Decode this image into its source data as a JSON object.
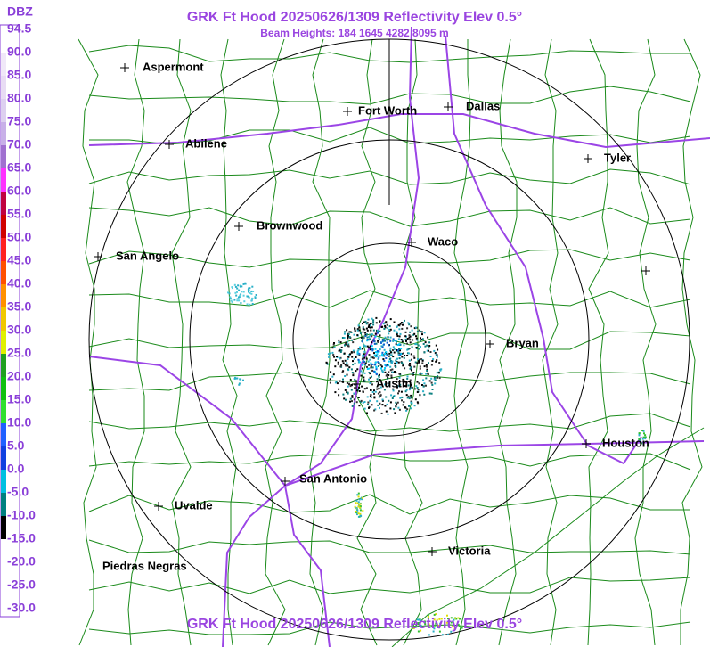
{
  "header": {
    "title": "GRK Ft Hood 20250626/1309 Reflectivity Elev 0.5°",
    "subtitle": "Beam Heights: 184 1645 4282 8095 m"
  },
  "footer": {
    "title": "GRK Ft Hood 20250626/1309 Reflectivity Elev 0.5°"
  },
  "legend": {
    "unit": "DBZ",
    "labels": [
      "94.5",
      "90.0",
      "85.0",
      "80.0",
      "75.0",
      "70.0",
      "65.0",
      "60.0",
      "55.0",
      "50.0",
      "45.0",
      "40.0",
      "35.0",
      "30.0",
      "25.0",
      "20.0",
      "15.0",
      "10.0",
      "5.0",
      "0.0",
      "-5.0",
      "-10.0",
      "-15.0",
      "-20.0",
      "-25.0",
      "-30.0"
    ]
  },
  "cities": [
    "Aspermont",
    "Fort Worth",
    "Dallas",
    "Abilene",
    "Tyler",
    "Brownwood",
    "Waco",
    "San Angelo",
    "Bryan",
    "Austin",
    "Houston",
    "San Antonio",
    "Uvalde",
    "Victoria",
    "Piedras Negras"
  ]
}
